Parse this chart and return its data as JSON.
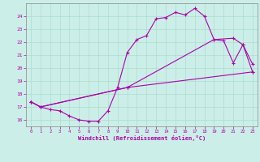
{
  "bg_color": "#cceee8",
  "grid_color": "#aaddcc",
  "line_color": "#aa00aa",
  "xlabel": "Windchill (Refroidissement éolien,°C)",
  "xlim": [
    -0.5,
    23.5
  ],
  "ylim": [
    15.5,
    25.0
  ],
  "yticks": [
    16,
    17,
    18,
    19,
    20,
    21,
    22,
    23,
    24
  ],
  "xticks": [
    0,
    1,
    2,
    3,
    4,
    5,
    6,
    7,
    8,
    9,
    10,
    11,
    12,
    13,
    14,
    15,
    16,
    17,
    18,
    19,
    20,
    21,
    22,
    23
  ],
  "series1_x": [
    0,
    1,
    2,
    3,
    4,
    5,
    6,
    7,
    8,
    9,
    10,
    11,
    12,
    13,
    14,
    15,
    16,
    17,
    18,
    19,
    20,
    21,
    22,
    23
  ],
  "series1_y": [
    17.4,
    17.0,
    16.8,
    16.7,
    16.3,
    16.0,
    15.9,
    15.9,
    16.7,
    18.5,
    21.2,
    22.2,
    22.5,
    23.8,
    23.9,
    24.3,
    24.1,
    24.6,
    24.0,
    22.2,
    22.1,
    20.4,
    21.8,
    20.3
  ],
  "series2_x": [
    0,
    1,
    10,
    23
  ],
  "series2_y": [
    17.4,
    17.0,
    18.5,
    19.7
  ],
  "series3_x": [
    0,
    1,
    10,
    19,
    21,
    22,
    23
  ],
  "series3_y": [
    17.4,
    17.0,
    18.5,
    22.2,
    22.3,
    21.8,
    19.7
  ]
}
